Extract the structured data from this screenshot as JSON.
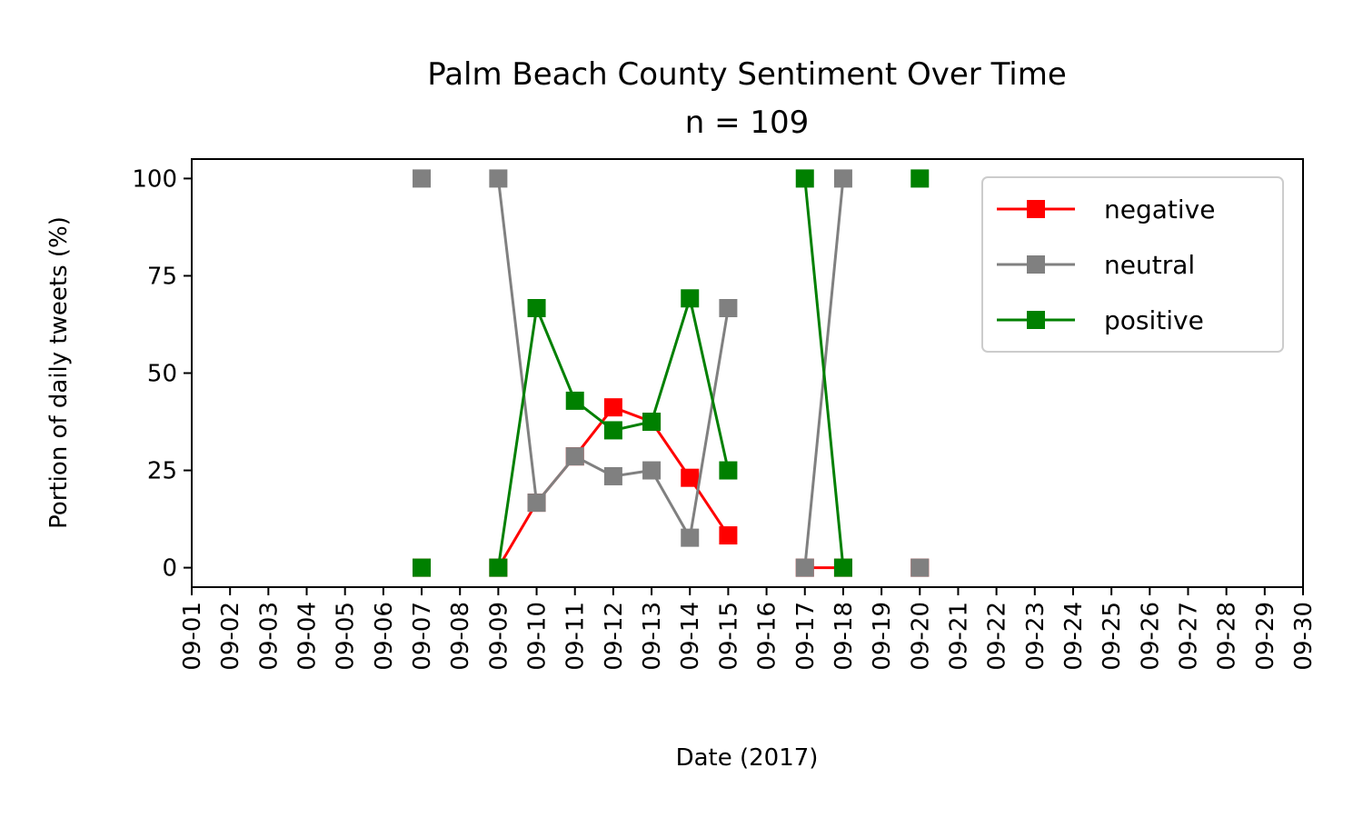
{
  "chart_data": {
    "type": "line",
    "title": "Palm Beach County Sentiment Over Time",
    "subtitle": "n = 109",
    "xlabel": "Date (2017)",
    "ylabel": "Portion of daily tweets (%)",
    "categories": [
      "09-01",
      "09-02",
      "09-03",
      "09-04",
      "09-05",
      "09-06",
      "09-07",
      "09-08",
      "09-09",
      "09-10",
      "09-11",
      "09-12",
      "09-13",
      "09-14",
      "09-15",
      "09-16",
      "09-17",
      "09-18",
      "09-19",
      "09-20",
      "09-21",
      "09-22",
      "09-23",
      "09-24",
      "09-25",
      "09-26",
      "09-27",
      "09-28",
      "09-29",
      "09-30"
    ],
    "ylim": [
      -5,
      105
    ],
    "yticks": [
      0,
      25,
      50,
      75,
      100
    ],
    "grid": false,
    "legend_position": "top-right",
    "series": [
      {
        "name": "negative",
        "color": "#ff0000",
        "values": [
          null,
          null,
          null,
          null,
          null,
          null,
          0,
          null,
          0,
          16.7,
          28.6,
          41.2,
          37.5,
          23.1,
          8.3,
          null,
          0,
          0,
          null,
          0,
          null,
          null,
          null,
          null,
          null,
          null,
          null,
          null,
          null,
          null
        ]
      },
      {
        "name": "neutral",
        "color": "#808080",
        "values": [
          null,
          null,
          null,
          null,
          null,
          null,
          100,
          null,
          100,
          16.7,
          28.6,
          23.5,
          25.0,
          7.7,
          66.7,
          null,
          0,
          100,
          null,
          0,
          null,
          null,
          null,
          null,
          null,
          null,
          null,
          null,
          null,
          null
        ]
      },
      {
        "name": "positive",
        "color": "#008000",
        "values": [
          null,
          null,
          null,
          null,
          null,
          null,
          0,
          null,
          0,
          66.7,
          42.9,
          35.3,
          37.5,
          69.2,
          25.0,
          null,
          100,
          0,
          null,
          100,
          null,
          null,
          null,
          null,
          null,
          null,
          null,
          null,
          null,
          null
        ]
      }
    ]
  }
}
